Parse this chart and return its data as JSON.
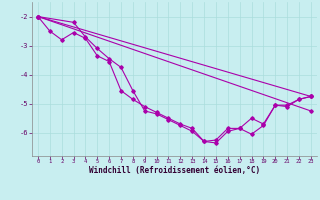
{
  "xlabel": "Windchill (Refroidissement éolien,°C)",
  "ylabel": "",
  "background_color": "#c8eef0",
  "grid_color": "#aadddd",
  "line_color": "#aa00aa",
  "xlim": [
    -0.5,
    23.5
  ],
  "ylim": [
    -6.8,
    -1.5
  ],
  "xticks": [
    0,
    1,
    2,
    3,
    4,
    5,
    6,
    7,
    8,
    9,
    10,
    11,
    12,
    13,
    14,
    15,
    16,
    17,
    18,
    19,
    20,
    21,
    22,
    23
  ],
  "yticks": [
    -6,
    -5,
    -4,
    -3,
    -2
  ],
  "line1_x": [
    0,
    1,
    2,
    3,
    4,
    5,
    6,
    7,
    8,
    9,
    10,
    11,
    12,
    13,
    14,
    15,
    16,
    17,
    18,
    19,
    20,
    21,
    22,
    23
  ],
  "line1_y": [
    -2.0,
    -2.5,
    -2.8,
    -2.55,
    -2.75,
    -3.35,
    -3.55,
    -4.55,
    -4.85,
    -5.1,
    -5.3,
    -5.5,
    -5.7,
    -5.85,
    -6.3,
    -6.25,
    -5.85,
    -5.85,
    -5.5,
    -5.7,
    -5.05,
    -5.05,
    -4.85,
    -4.75
  ],
  "line2_x": [
    0,
    3,
    4,
    5,
    6,
    7,
    8,
    9,
    10,
    11,
    12,
    13,
    14,
    15,
    16,
    17,
    18,
    19,
    20,
    21,
    22,
    23
  ],
  "line2_y": [
    -2.0,
    -2.2,
    -2.7,
    -3.1,
    -3.45,
    -3.75,
    -4.55,
    -5.25,
    -5.35,
    -5.55,
    -5.75,
    -5.95,
    -6.3,
    -6.35,
    -5.95,
    -5.85,
    -6.05,
    -5.75,
    -5.05,
    -5.1,
    -4.85,
    -4.75
  ],
  "line3_x": [
    0,
    23
  ],
  "line3_y": [
    -2.0,
    -4.75
  ],
  "line4_x": [
    0,
    23
  ],
  "line4_y": [
    -2.0,
    -5.25
  ]
}
